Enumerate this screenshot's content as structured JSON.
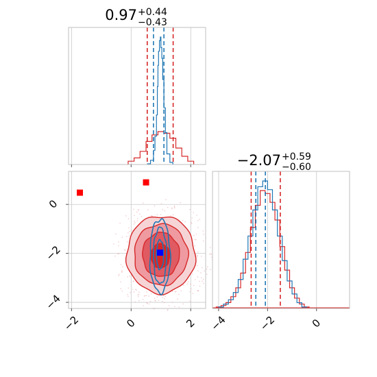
{
  "chart_data": {
    "type": "corner",
    "parameters": 2,
    "grid": true,
    "colors": {
      "posterior_a": "#d62728",
      "posterior_b": "#1f77b4",
      "marker_red": "#ff0000",
      "marker_blue": "#0000ff"
    },
    "panels": [
      {
        "position": "top-left",
        "type": "histogram",
        "title": {
          "value": "0.97",
          "upper": "+0.44",
          "lower": "−0.43"
        },
        "xlim": [
          -2.1,
          2.5
        ],
        "xticks": [
          -2,
          0,
          2
        ],
        "tick_labels_shown": false,
        "quantile_lines": {
          "red": [
            0.54,
            1.41
          ],
          "blue": [
            0.75,
            1.1
          ]
        },
        "series": [
          {
            "name": "",
            "color": "#d62728",
            "bin_edges": [
              -0.1,
              0.1,
              0.3,
              0.5,
              0.7,
              0.9,
              1.1,
              1.3,
              1.5,
              1.7,
              1.9,
              2.1
            ],
            "counts": [
              2,
              4,
              8,
              14,
              18,
              20,
              19,
              16,
              10,
              5,
              2
            ]
          },
          {
            "name": "",
            "color": "#1f77b4",
            "bin_edges": [
              0.55,
              0.65,
              0.75,
              0.8,
              0.85,
              0.88,
              0.9,
              0.92,
              0.95,
              0.98,
              1.0,
              1.03,
              1.06,
              1.1,
              1.15,
              1.2,
              1.3,
              1.4
            ],
            "counts": [
              1,
              6,
              20,
              40,
              70,
              110,
              140,
              160,
              175,
              180,
              165,
              150,
              120,
              80,
              45,
              15,
              3
            ]
          }
        ]
      },
      {
        "position": "bottom-left",
        "type": "2d-contour",
        "xlim": [
          -2.1,
          2.5
        ],
        "ylim": [
          -4.25,
          1.35
        ],
        "xticks": [
          -2,
          0,
          2
        ],
        "yticks": [
          0,
          -2,
          -4
        ],
        "xtick_labels": [
          "−2",
          "0",
          "2"
        ],
        "ytick_labels": [
          "0",
          "−2",
          "−4"
        ],
        "red_contours": [
          {
            "cx": 1.0,
            "cy": -2.05,
            "rx": 1.15,
            "ry": 1.58
          },
          {
            "cx": 1.0,
            "cy": -2.05,
            "rx": 0.9,
            "ry": 1.25
          },
          {
            "cx": 1.0,
            "cy": -2.05,
            "rx": 0.62,
            "ry": 0.9
          },
          {
            "cx": 0.98,
            "cy": -2.1,
            "rx": 0.32,
            "ry": 0.5
          }
        ],
        "blue_contours": [
          {
            "cx": 0.97,
            "cy": -2.1,
            "rx": 0.34,
            "ry": 1.5
          },
          {
            "cx": 0.97,
            "cy": -2.1,
            "rx": 0.22,
            "ry": 1.15
          },
          {
            "cx": 0.97,
            "cy": -2.05,
            "rx": 0.12,
            "ry": 0.6
          }
        ],
        "markers": [
          {
            "color": "#ff0000",
            "x": -1.72,
            "y": 0.48
          },
          {
            "color": "#ff0000",
            "x": 0.5,
            "y": 0.9
          },
          {
            "color": "#0000ff",
            "x": 0.97,
            "y": -1.97
          }
        ]
      },
      {
        "position": "bottom-right",
        "type": "histogram",
        "title": {
          "value": "−2.07",
          "upper": "+0.59",
          "lower": "−0.60"
        },
        "xlim": [
          -4.25,
          1.35
        ],
        "xticks": [
          -4,
          -2,
          0
        ],
        "xtick_labels": [
          "−4",
          "−2",
          "0"
        ],
        "quantile_lines": {
          "red": [
            -2.67,
            -1.48
          ],
          "blue": [
            -2.48,
            -2.09
          ]
        },
        "series": [
          {
            "name": "",
            "color": "#d62728",
            "bin_edges": [
              -4.1,
              -3.9,
              -3.7,
              -3.5,
              -3.3,
              -3.1,
              -2.9,
              -2.7,
              -2.5,
              -2.3,
              -2.1,
              -1.9,
              -1.7,
              -1.5,
              -1.3,
              -1.1,
              -0.9,
              -0.7,
              -0.5,
              -0.3
            ],
            "counts": [
              1,
              2,
              4,
              8,
              14,
              24,
              38,
              55,
              70,
              80,
              78,
              72,
              60,
              42,
              26,
              14,
              7,
              3,
              1
            ]
          },
          {
            "name": "",
            "color": "#1f77b4",
            "bin_edges": [
              -4.0,
              -3.8,
              -3.6,
              -3.4,
              -3.2,
              -3.0,
              -2.8,
              -2.6,
              -2.4,
              -2.2,
              -2.0,
              -1.8,
              -1.6,
              -1.4,
              -1.2,
              -1.0,
              -0.8,
              -0.6,
              -0.4
            ],
            "counts": [
              1,
              3,
              6,
              11,
              20,
              34,
              50,
              68,
              84,
              88,
              82,
              68,
              50,
              33,
              19,
              10,
              4,
              1
            ]
          }
        ]
      }
    ]
  }
}
